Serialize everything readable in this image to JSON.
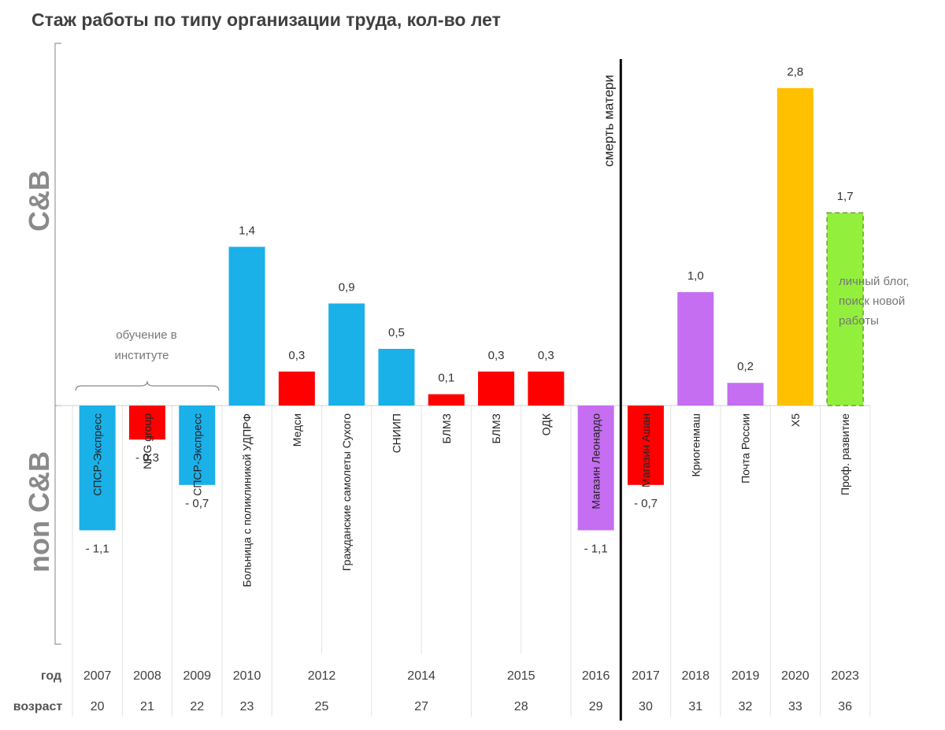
{
  "title": "Стаж работы по типу организации труда, кол-во лет",
  "chart_data": {
    "type": "bar",
    "ylim": [
      -3.5,
      3.2
    ],
    "zones": {
      "top": "C&B",
      "bottom": "non C&B"
    },
    "row_labels": {
      "year": "год",
      "age": "возраст"
    },
    "categories": [
      "СПСР-Экспресс",
      "NRG group",
      "СПСР-Экспресс",
      "Больница с поликлиникой УДПРФ",
      "Медси",
      "Гражданские самолеты Сухого",
      "СНИИП",
      "БЛМЗ",
      "БЛМЗ",
      "ОДК",
      "Магазин  Леонардо",
      "Магазин Ашан",
      "Криогенмаш",
      "Почта России",
      "Х5",
      "Проф. развитие"
    ],
    "values": [
      -1.1,
      -0.3,
      -0.7,
      1.4,
      0.3,
      0.9,
      0.5,
      0.1,
      0.3,
      0.3,
      -1.1,
      -0.7,
      1.0,
      0.2,
      2.8,
      1.7
    ],
    "value_labels": [
      "- 1,1",
      "- 0,3",
      "- 0,7",
      "1,4",
      "0,3",
      "0,9",
      "0,5",
      "0,1",
      "0,3",
      "0,3",
      "- 1,1",
      "- 0,7",
      "1,0",
      "0,2",
      "2,8",
      "1,7"
    ],
    "colors": [
      "#1ab0e8",
      "#ff0000",
      "#1ab0e8",
      "#1ab0e8",
      "#ff0000",
      "#1ab0e8",
      "#1ab0e8",
      "#ff0000",
      "#ff0000",
      "#ff0000",
      "#c56ef2",
      "#ff0000",
      "#c56ef2",
      "#c56ef2",
      "#ffc000",
      "#92f03c"
    ],
    "dashed": [
      false,
      false,
      false,
      false,
      false,
      false,
      false,
      false,
      false,
      false,
      false,
      false,
      false,
      false,
      false,
      true
    ],
    "years": [
      "2007",
      "2008",
      "2009",
      "2010",
      "2012",
      "2014",
      "2015",
      "2016",
      "2017",
      "2018",
      "2019",
      "2020",
      "2023"
    ],
    "ages": [
      "20",
      "21",
      "22",
      "23",
      "25",
      "27",
      "28",
      "29",
      "30",
      "31",
      "32",
      "33",
      "36"
    ],
    "year_spans": [
      1,
      1,
      1,
      1,
      2,
      2,
      2,
      1,
      1,
      1,
      1,
      1,
      1
    ],
    "annotations": {
      "study": "обучение в институте",
      "death": "смерть матери",
      "blog": "личный блог, поиск новой работы"
    }
  }
}
